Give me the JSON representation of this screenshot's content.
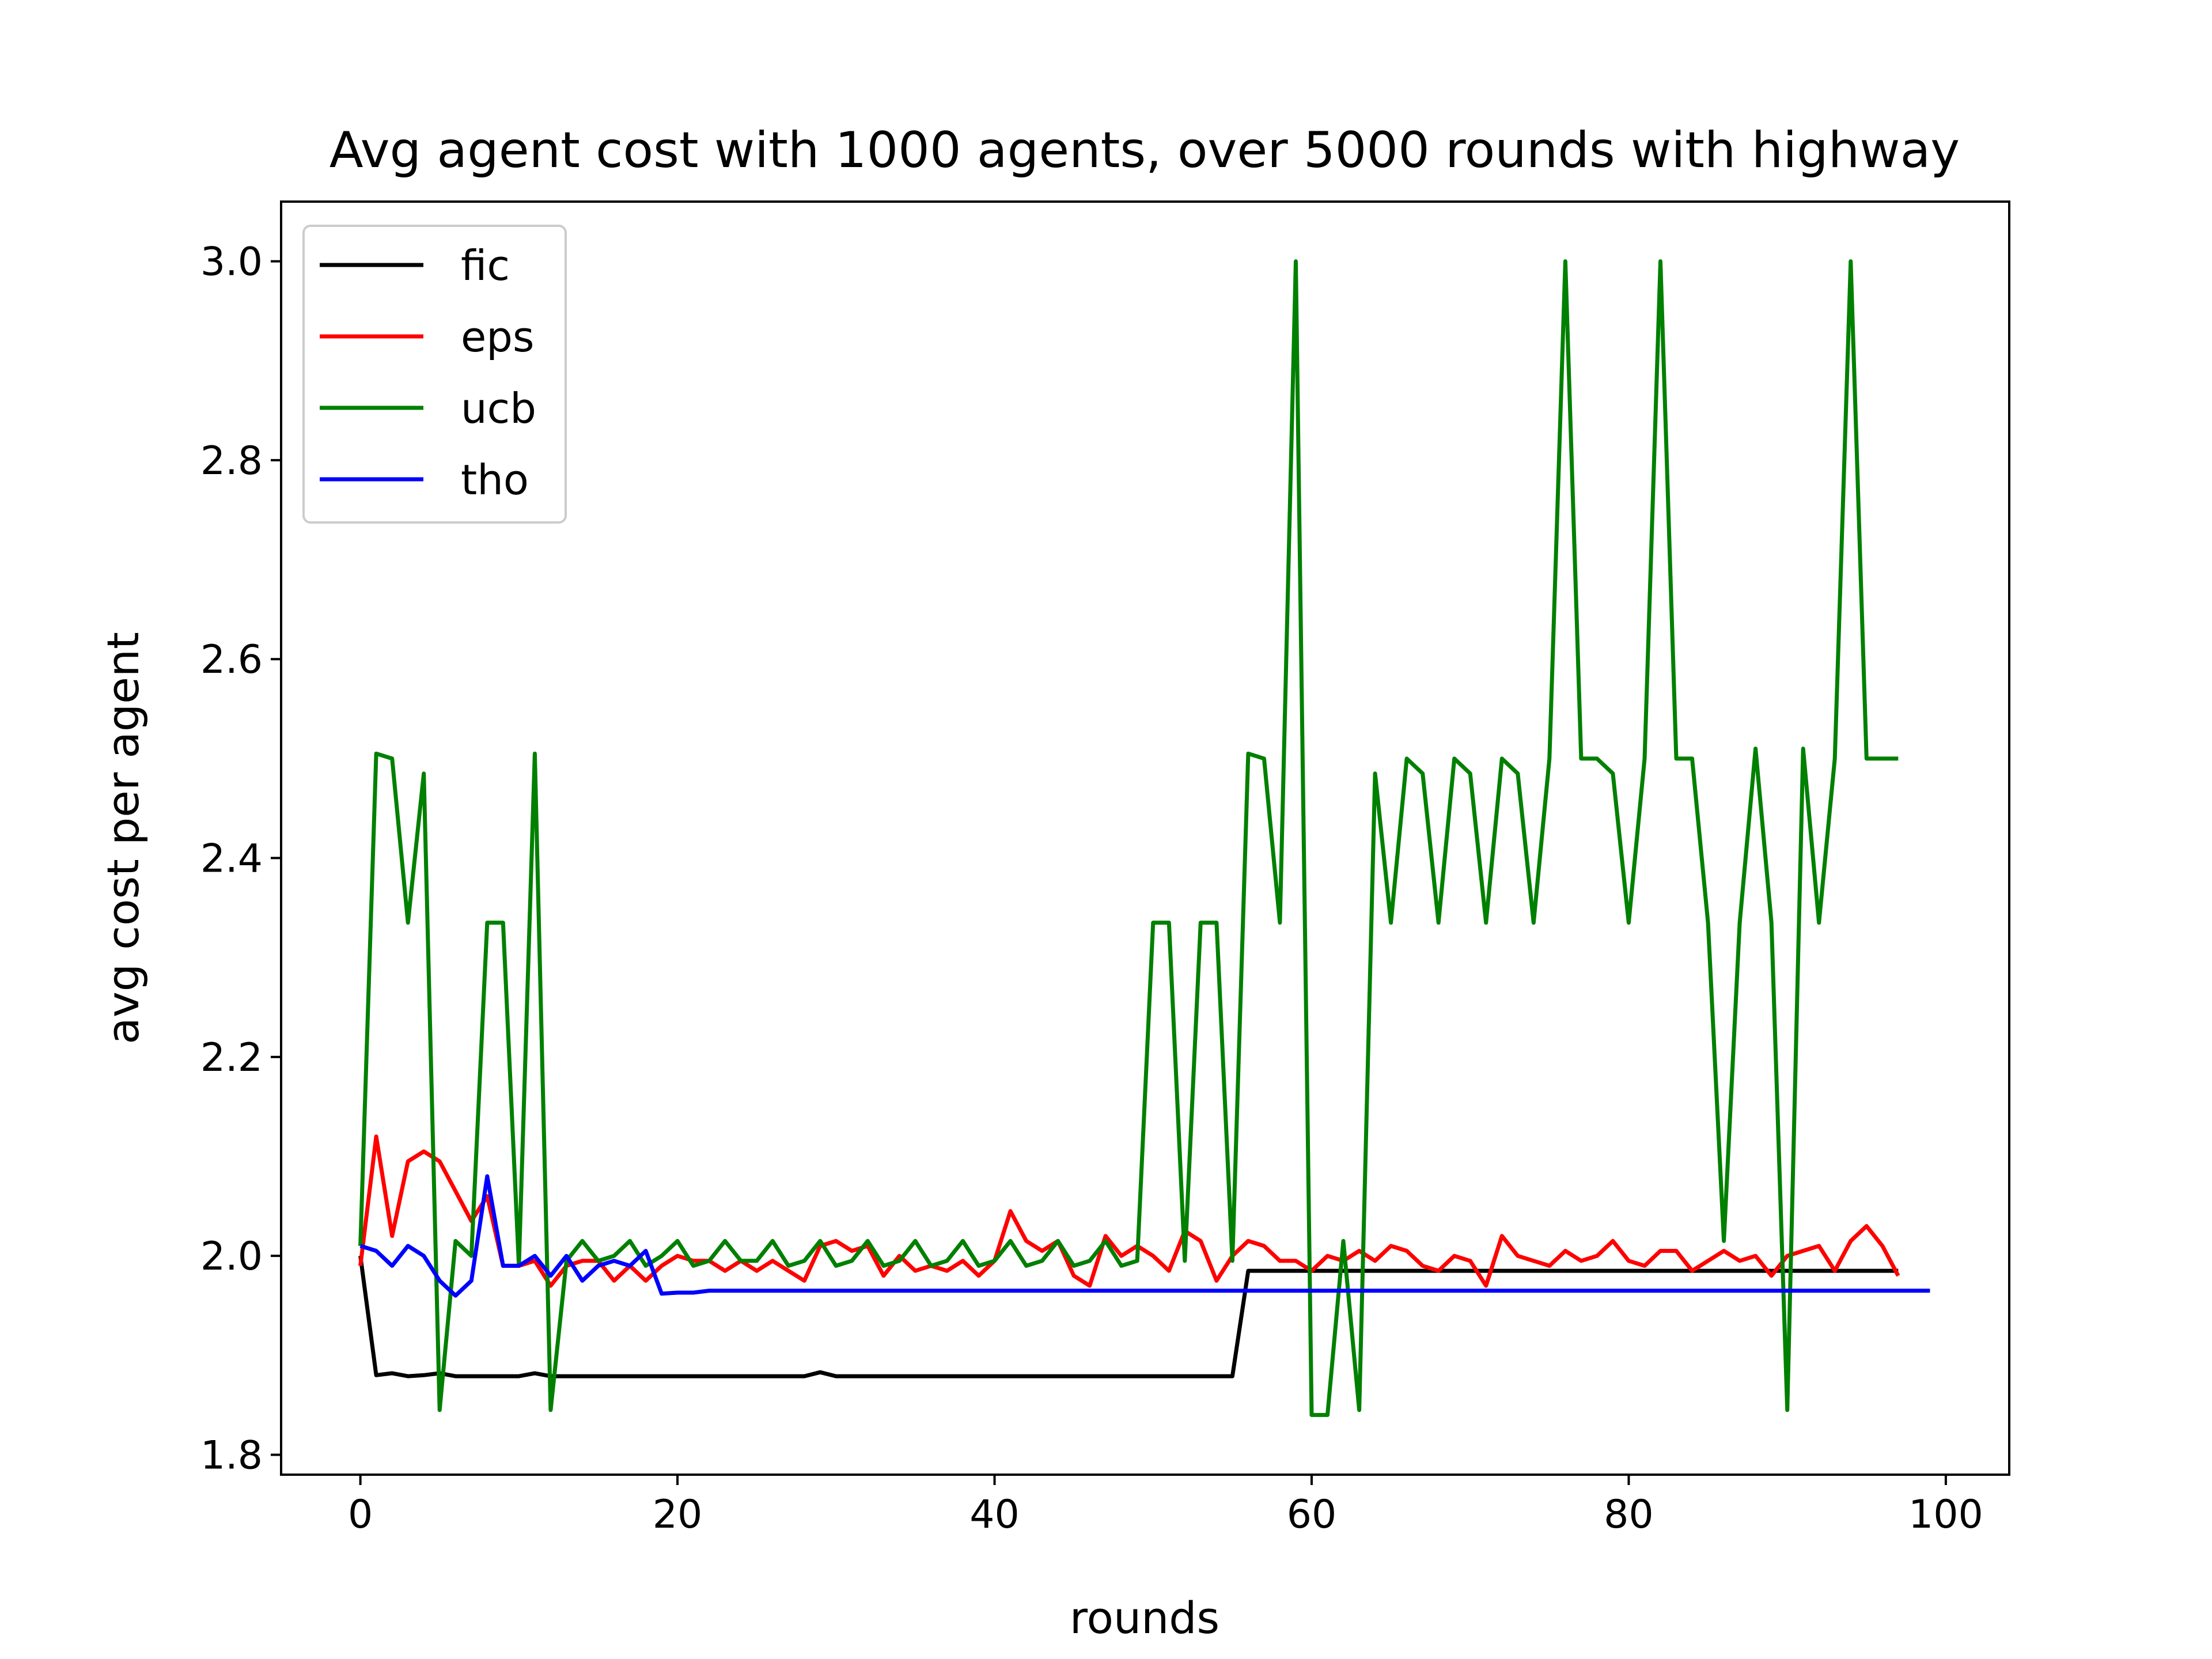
{
  "chart_data": {
    "type": "line",
    "title": "Avg agent cost with 1000 agents, over 5000 rounds with highway",
    "xlabel": "rounds",
    "ylabel": "avg cost per agent",
    "xlim": [
      -5,
      104
    ],
    "ylim": [
      1.78,
      3.06
    ],
    "xticks": [
      0,
      20,
      40,
      60,
      80,
      100
    ],
    "yticks": [
      1.8,
      2.0,
      2.2,
      2.4,
      2.6,
      2.8,
      3.0
    ],
    "xtick_labels": [
      "0",
      "20",
      "40",
      "60",
      "80",
      "100"
    ],
    "ytick_labels": [
      "1.8",
      "2.0",
      "2.2",
      "2.4",
      "2.6",
      "2.8",
      "3.0"
    ],
    "grid": false,
    "legend_position": "upper-left",
    "series": [
      {
        "name": "fic",
        "color": "#000000",
        "x": [
          0,
          1,
          2,
          3,
          4,
          5,
          6,
          10,
          11,
          12,
          28,
          29,
          30,
          55,
          56,
          97
        ],
        "y": [
          2.0,
          1.88,
          1.882,
          1.879,
          1.88,
          1.882,
          1.879,
          1.879,
          1.882,
          1.879,
          1.879,
          1.883,
          1.879,
          1.879,
          1.985,
          1.985
        ]
      },
      {
        "name": "eps",
        "color": "#ff0000",
        "x": [
          0,
          1,
          2,
          3,
          4,
          5,
          6,
          7,
          8,
          9,
          10,
          11,
          12,
          13,
          14,
          15,
          16,
          17,
          18,
          19,
          20,
          21,
          22,
          23,
          24,
          25,
          26,
          27,
          28,
          29,
          30,
          31,
          32,
          33,
          34,
          35,
          36,
          37,
          38,
          39,
          40,
          41,
          42,
          43,
          44,
          45,
          46,
          47,
          48,
          49,
          50,
          51,
          52,
          53,
          54,
          55,
          56,
          57,
          58,
          59,
          60,
          61,
          62,
          63,
          64,
          65,
          66,
          67,
          68,
          69,
          70,
          71,
          72,
          73,
          74,
          75,
          76,
          77,
          78,
          79,
          80,
          81,
          82,
          83,
          84,
          85,
          86,
          87,
          88,
          89,
          90,
          91,
          92,
          93,
          94,
          95,
          96,
          97
        ],
        "y": [
          1.99,
          2.12,
          2.02,
          2.095,
          2.105,
          2.095,
          2.065,
          2.035,
          2.06,
          1.99,
          1.99,
          1.995,
          1.97,
          1.99,
          1.995,
          1.995,
          1.975,
          1.99,
          1.975,
          1.99,
          2.0,
          1.995,
          1.995,
          1.985,
          1.995,
          1.985,
          1.995,
          1.985,
          1.975,
          2.01,
          2.015,
          2.005,
          2.01,
          1.98,
          2.0,
          1.985,
          1.99,
          1.985,
          1.995,
          1.98,
          1.995,
          2.045,
          2.015,
          2.005,
          2.015,
          1.98,
          1.97,
          2.02,
          2.0,
          2.01,
          2.0,
          1.985,
          2.025,
          2.015,
          1.975,
          2.0,
          2.015,
          2.01,
          1.995,
          1.995,
          1.985,
          2.0,
          1.995,
          2.005,
          1.995,
          2.01,
          2.005,
          1.99,
          1.985,
          2.0,
          1.995,
          1.97,
          2.02,
          2.0,
          1.995,
          1.99,
          2.005,
          1.995,
          2.0,
          2.015,
          1.995,
          1.99,
          2.005,
          2.005,
          1.985,
          1.995,
          2.005,
          1.995,
          2.0,
          1.98,
          2.0,
          2.005,
          2.01,
          1.985,
          2.015,
          2.03,
          2.01,
          1.98
        ]
      },
      {
        "name": "ucb",
        "color": "#008000",
        "x": [
          0,
          1,
          2,
          3,
          4,
          5,
          6,
          7,
          8,
          9,
          10,
          11,
          12,
          13,
          14,
          15,
          16,
          17,
          18,
          19,
          20,
          21,
          22,
          23,
          24,
          25,
          26,
          27,
          28,
          29,
          30,
          31,
          32,
          33,
          34,
          35,
          36,
          37,
          38,
          39,
          40,
          41,
          42,
          43,
          44,
          45,
          46,
          47,
          48,
          49,
          50,
          51,
          52,
          53,
          54,
          55,
          56,
          57,
          58,
          59,
          60,
          61,
          62,
          63,
          64,
          65,
          66,
          67,
          68,
          69,
          70,
          71,
          72,
          73,
          74,
          75,
          76,
          77,
          78,
          79,
          80,
          81,
          82,
          83,
          84,
          85,
          86,
          87,
          88,
          89,
          90,
          91,
          92,
          93,
          94,
          95,
          96,
          97
        ],
        "y": [
          2.01,
          2.505,
          2.5,
          2.335,
          2.485,
          1.845,
          2.015,
          2.0,
          2.335,
          2.335,
          1.99,
          2.505,
          1.845,
          1.995,
          2.015,
          1.995,
          2.0,
          2.015,
          1.99,
          2.0,
          2.015,
          1.99,
          1.995,
          2.015,
          1.995,
          1.995,
          2.015,
          1.99,
          1.995,
          2.015,
          1.99,
          1.995,
          2.015,
          1.99,
          1.995,
          2.015,
          1.99,
          1.995,
          2.015,
          1.99,
          1.995,
          2.015,
          1.99,
          1.995,
          2.015,
          1.99,
          1.995,
          2.015,
          1.99,
          1.995,
          2.335,
          2.335,
          1.995,
          2.335,
          2.335,
          1.995,
          2.505,
          2.5,
          2.335,
          3.0,
          1.84,
          1.84,
          2.015,
          1.845,
          2.485,
          2.335,
          2.5,
          2.485,
          2.335,
          2.5,
          2.485,
          2.335,
          2.5,
          2.485,
          2.335,
          2.5,
          3.0,
          2.5,
          2.5,
          2.485,
          2.335,
          2.5,
          3.0,
          2.5,
          2.5,
          2.335,
          2.015,
          2.335,
          2.51,
          2.335,
          1.845,
          2.51,
          2.335,
          2.5,
          3.0,
          2.5,
          2.5,
          2.5
        ]
      },
      {
        "name": "tho",
        "color": "#0000ff",
        "x": [
          0,
          1,
          2,
          3,
          4,
          5,
          6,
          7,
          8,
          9,
          10,
          11,
          12,
          13,
          14,
          15,
          16,
          17,
          18,
          19,
          20,
          21,
          22,
          99
        ],
        "y": [
          2.01,
          2.005,
          1.99,
          2.01,
          2.0,
          1.975,
          1.96,
          1.975,
          2.08,
          1.99,
          1.99,
          2.0,
          1.98,
          2.0,
          1.975,
          1.99,
          1.995,
          1.99,
          2.005,
          1.962,
          1.963,
          1.963,
          1.965,
          1.965
        ]
      }
    ]
  }
}
